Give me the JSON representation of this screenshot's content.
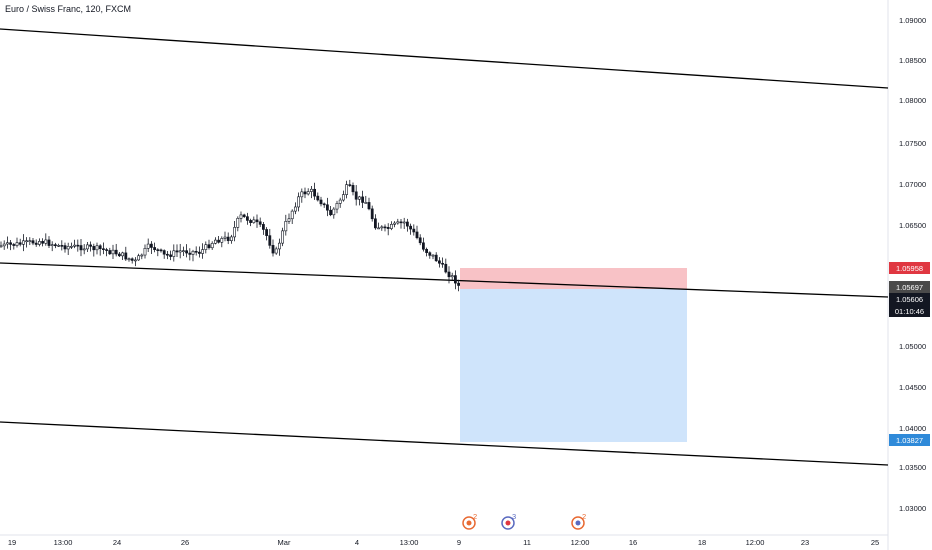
{
  "chart": {
    "title": "Euro / Swiss Franc, 120, FXCM",
    "colors": {
      "stop_zone": "#f8c2c6",
      "target_zone": "#cfe4fb",
      "stop_tag": "#e03741",
      "target_tag": "#2f8ad9",
      "price_tag": "#4a4a4a",
      "current_tag": "#131722",
      "candle": "#131722",
      "trendline": "#000000",
      "axis_border": "#e0e3eb",
      "event_icon": "#e86a33",
      "event_icon_2": "#5b6bc0"
    },
    "price_axis": {
      "labels": [
        "1.09000",
        "1.08500",
        "1.08000",
        "1.07500",
        "1.07000",
        "1.06500",
        "1.06000",
        "1.05500",
        "1.05000",
        "1.04500",
        "1.04000",
        "1.03500",
        "1.03000"
      ]
    },
    "time_axis": {
      "labels": [
        "19",
        "13:00",
        "24",
        "26",
        "Mar",
        "4",
        "13:00",
        "9",
        "11",
        "12:00",
        "16",
        "18",
        "12:00",
        "23",
        "25"
      ]
    },
    "tags": {
      "stop": "1.05958",
      "price": "1.05697",
      "current": "1.05606",
      "countdown": "01:10:46",
      "target": "1.03827"
    },
    "events": [
      {
        "icon": "calendar-flag-icon",
        "label": "2"
      },
      {
        "icon": "calendar-flag-icon",
        "label": "3"
      },
      {
        "icon": "calendar-flag-icon",
        "label": "2"
      }
    ]
  }
}
